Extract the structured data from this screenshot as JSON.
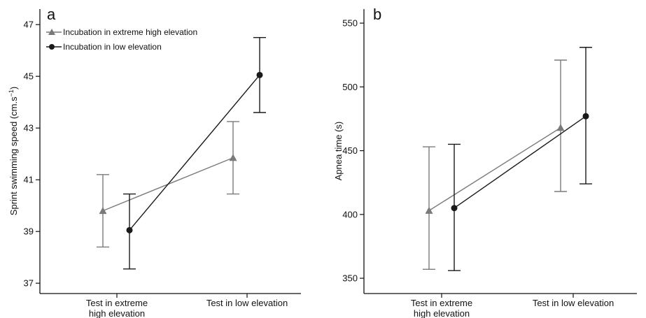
{
  "chart_data": [
    {
      "panel_label": "a",
      "type": "line",
      "ylabel": "Sprint swimming speed (cm.s",
      "ylabel_sup": "−1",
      "ylabel_tail": ")",
      "ylim": [
        36.6,
        47.6
      ],
      "yticks": [
        37,
        39,
        41,
        43,
        45,
        47
      ],
      "categories": [
        [
          "Test in extreme",
          "high elevation"
        ],
        [
          "Test in low elevation"
        ]
      ],
      "series": [
        {
          "name": "Incubation in extreme high elevation",
          "marker": "triangle",
          "color": "#7a7a7a",
          "values": [
            39.8,
            41.85
          ],
          "err_low": [
            38.4,
            40.45
          ],
          "err_high": [
            41.2,
            43.25
          ]
        },
        {
          "name": "Incubation in low elevation",
          "marker": "circle",
          "color": "#1a1a1a",
          "values": [
            39.05,
            45.05
          ],
          "err_low": [
            37.55,
            43.6
          ],
          "err_high": [
            40.45,
            46.5
          ]
        }
      ],
      "legend_position": "top-left"
    },
    {
      "panel_label": "b",
      "type": "line",
      "ylabel": "Apnea time (s)",
      "ylim": [
        338,
        561
      ],
      "yticks": [
        350,
        400,
        450,
        500,
        550
      ],
      "categories": [
        [
          "Test in extreme",
          "high elevation"
        ],
        [
          "Test in low elevation"
        ]
      ],
      "series": [
        {
          "marker": "triangle",
          "color": "#7a7a7a",
          "values": [
            403,
            468
          ],
          "err_low": [
            357,
            418
          ],
          "err_high": [
            453,
            521
          ]
        },
        {
          "marker": "circle",
          "color": "#1a1a1a",
          "values": [
            405,
            477
          ],
          "err_low": [
            356,
            424
          ],
          "err_high": [
            455,
            531
          ]
        }
      ]
    }
  ]
}
